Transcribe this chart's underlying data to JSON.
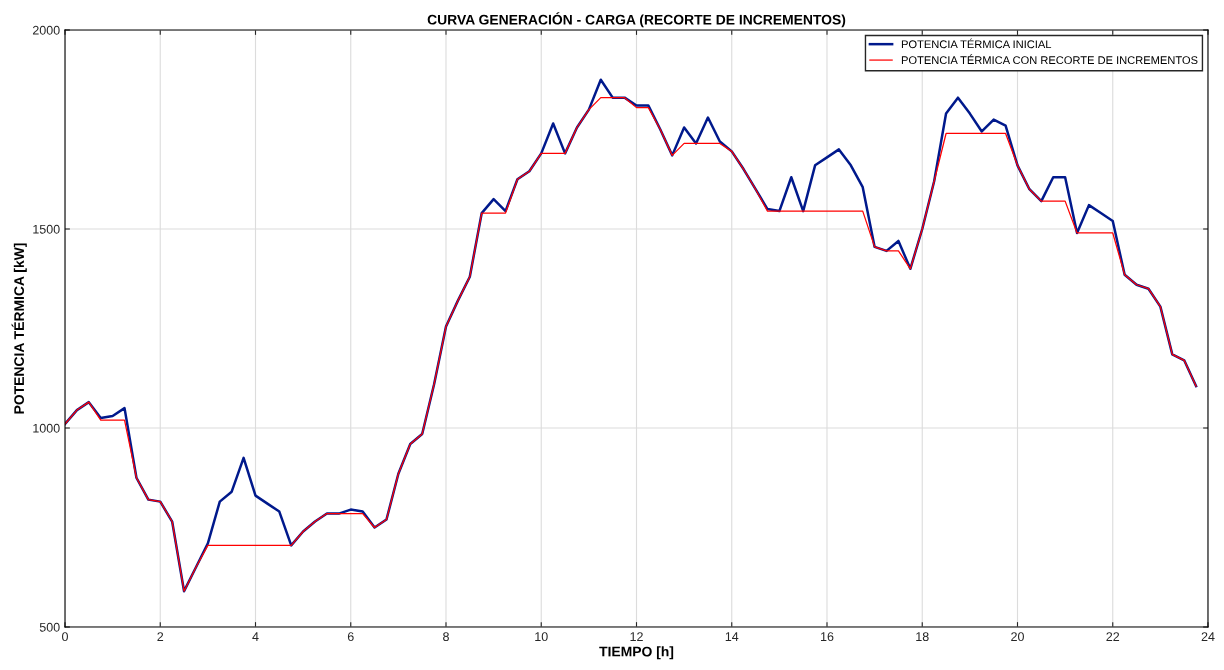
{
  "chart_data": {
    "type": "line",
    "title": "CURVA GENERACIÓN - CARGA (RECORTE DE INCREMENTOS)",
    "xlabel": "TIEMPO [h]",
    "ylabel": "POTENCIA TÉRMICA [kW]",
    "x": [
      0,
      0.25,
      0.5,
      0.75,
      1,
      1.25,
      1.5,
      1.75,
      2,
      2.25,
      2.5,
      2.75,
      3,
      3.25,
      3.5,
      3.75,
      4,
      4.25,
      4.5,
      4.75,
      5,
      5.25,
      5.5,
      5.75,
      6,
      6.25,
      6.5,
      6.75,
      7,
      7.25,
      7.5,
      7.75,
      8,
      8.25,
      8.5,
      8.75,
      9,
      9.25,
      9.5,
      9.75,
      10,
      10.25,
      10.5,
      10.75,
      11,
      11.25,
      11.5,
      11.75,
      12,
      12.25,
      12.5,
      12.75,
      13,
      13.25,
      13.5,
      13.75,
      14,
      14.25,
      14.5,
      14.75,
      15,
      15.25,
      15.5,
      15.75,
      16,
      16.25,
      16.5,
      16.75,
      17,
      17.25,
      17.5,
      17.75,
      18,
      18.25,
      18.5,
      18.75,
      19,
      19.25,
      19.5,
      19.75,
      20,
      20.25,
      20.5,
      20.75,
      21,
      21.25,
      21.5,
      21.75,
      22,
      22.25,
      22.5,
      22.75,
      23,
      23.25,
      23.5,
      23.75
    ],
    "series": [
      {
        "name": "POTENCIA TÉRMICA INICIAL",
        "color": "#00198c",
        "values": [
          1010,
          1045,
          1065,
          1025,
          1030,
          1050,
          875,
          820,
          815,
          765,
          590,
          650,
          710,
          815,
          840,
          925,
          830,
          810,
          790,
          705,
          740,
          765,
          785,
          785,
          795,
          790,
          750,
          770,
          885,
          960,
          985,
          1110,
          1255,
          1320,
          1380,
          1540,
          1575,
          1545,
          1625,
          1645,
          1690,
          1765,
          1690,
          1755,
          1800,
          1875,
          1830,
          1830,
          1810,
          1810,
          1750,
          1685,
          1755,
          1715,
          1780,
          1720,
          1695,
          1650,
          1600,
          1550,
          1545,
          1630,
          1545,
          1660,
          1680,
          1700,
          1660,
          1605,
          1455,
          1445,
          1470,
          1400,
          1500,
          1620,
          1790,
          1830,
          1790,
          1745,
          1775,
          1760,
          1660,
          1600,
          1570,
          1630,
          1630,
          1490,
          1560,
          1540,
          1520,
          1385,
          1360,
          1350,
          1305,
          1185,
          1170,
          1105
        ]
      },
      {
        "name": "POTENCIA TÉRMICA CON RECORTE DE INCREMENTOS",
        "color": "#ff0000",
        "values": [
          1010,
          1045,
          1065,
          1020,
          1020,
          1020,
          875,
          820,
          815,
          765,
          590,
          650,
          705,
          705,
          705,
          705,
          705,
          705,
          705,
          705,
          740,
          765,
          785,
          785,
          785,
          785,
          750,
          770,
          885,
          960,
          985,
          1110,
          1255,
          1320,
          1380,
          1540,
          1540,
          1540,
          1625,
          1645,
          1690,
          1690,
          1690,
          1755,
          1800,
          1830,
          1830,
          1830,
          1805,
          1805,
          1750,
          1685,
          1715,
          1715,
          1715,
          1715,
          1695,
          1650,
          1600,
          1545,
          1545,
          1545,
          1545,
          1545,
          1545,
          1545,
          1545,
          1545,
          1455,
          1445,
          1445,
          1400,
          1500,
          1620,
          1740,
          1740,
          1740,
          1740,
          1740,
          1740,
          1660,
          1600,
          1570,
          1570,
          1570,
          1490,
          1490,
          1490,
          1490,
          1385,
          1360,
          1350,
          1305,
          1185,
          1170,
          1105
        ]
      }
    ],
    "xlim": [
      0,
      24
    ],
    "xticks": [
      0,
      2,
      4,
      6,
      8,
      10,
      12,
      14,
      16,
      18,
      20,
      22,
      24
    ],
    "ylim": [
      500,
      2000
    ],
    "yticks": [
      500,
      1000,
      1500,
      2000
    ],
    "grid": true,
    "legend": "top right",
    "line_style": "solid",
    "marker": "none"
  }
}
